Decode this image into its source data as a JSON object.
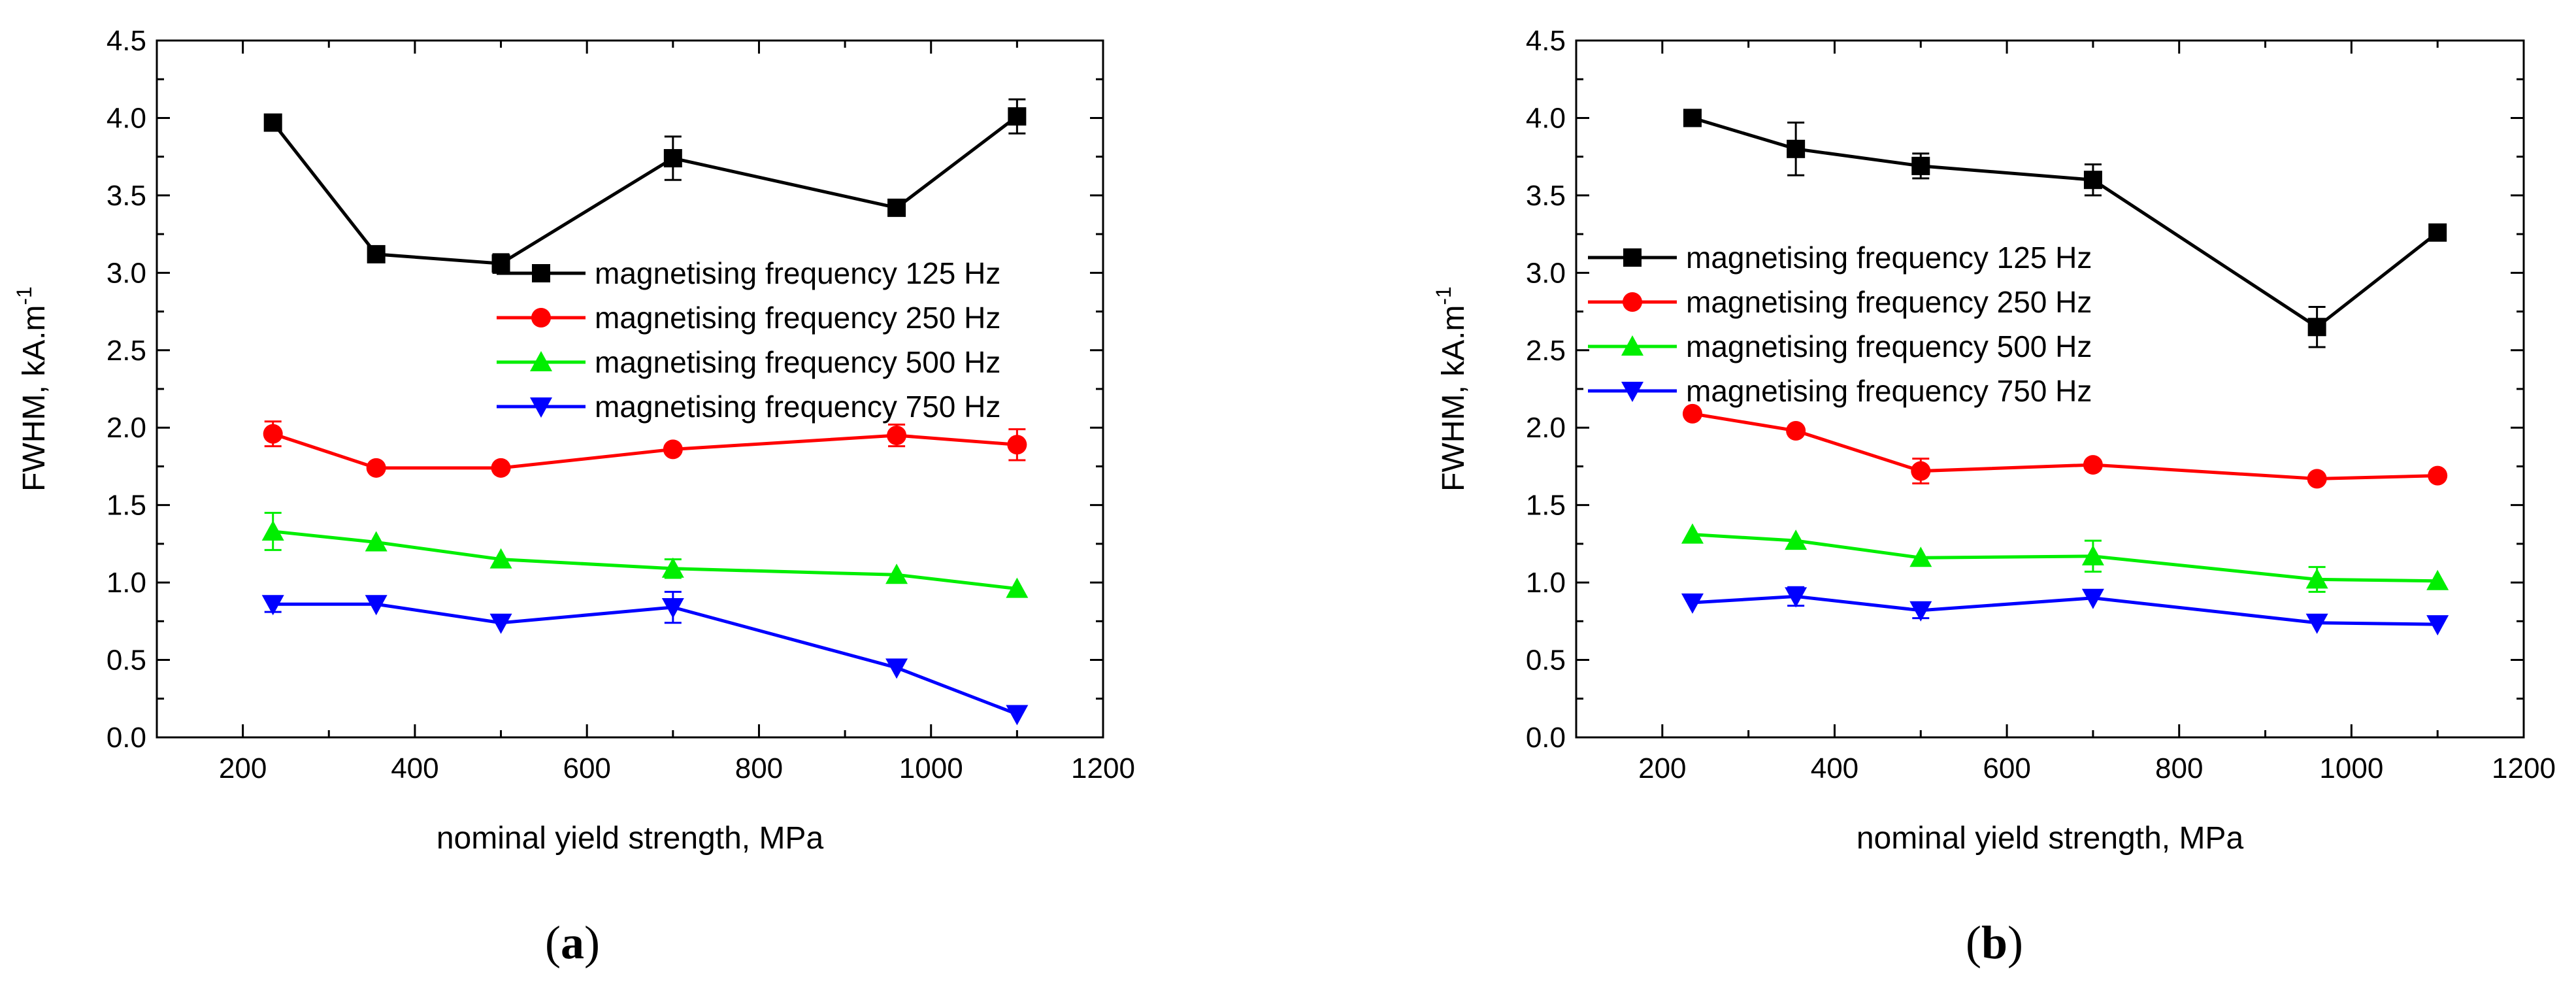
{
  "chart_data": [
    {
      "type": "line",
      "panel_label": "a",
      "xlabel": "nominal yield strength, MPa",
      "ylabel": "FWHM, kA.m",
      "ylabel_superscript": "-1",
      "xlim": [
        100,
        1200
      ],
      "ylim": [
        0,
        4.5
      ],
      "xticks": [
        "200",
        "400",
        "600",
        "800",
        "1000",
        "1200"
      ],
      "yticks": [
        "0.0",
        "0.5",
        "1.0",
        "1.5",
        "2.0",
        "2.5",
        "3.0",
        "3.5",
        "4.0",
        "4.5"
      ],
      "legend_position": "upper-right",
      "x": [
        235,
        355,
        500,
        700,
        960,
        1100
      ],
      "series": [
        {
          "name": "magnetising frequency 125 Hz",
          "color": "#000000",
          "marker": "square",
          "values": [
            3.97,
            3.12,
            3.06,
            3.74,
            3.42,
            4.01
          ],
          "errors": [
            0.0,
            0.0,
            0.06,
            0.14,
            0.0,
            0.11
          ]
        },
        {
          "name": "magnetising frequency 250 Hz",
          "color": "#ff0000",
          "marker": "circle",
          "values": [
            1.96,
            1.74,
            1.74,
            1.86,
            1.95,
            1.89
          ],
          "errors": [
            0.08,
            0.0,
            0.0,
            0.0,
            0.07,
            0.1
          ]
        },
        {
          "name": "magnetising frequency 500 Hz",
          "color": "#00ee00",
          "marker": "triangle-up",
          "values": [
            1.33,
            1.26,
            1.15,
            1.09,
            1.05,
            0.96
          ],
          "errors": [
            0.12,
            0.0,
            0.0,
            0.06,
            0.0,
            0.0
          ]
        },
        {
          "name": "magnetising frequency 750 Hz",
          "color": "#0000ff",
          "marker": "triangle-down",
          "values": [
            0.86,
            0.86,
            0.74,
            0.84,
            0.45,
            0.15
          ],
          "errors": [
            0.05,
            0.0,
            0.0,
            0.1,
            0.0,
            0.0
          ]
        }
      ]
    },
    {
      "type": "line",
      "panel_label": "b",
      "xlabel": "nominal yield strength, MPa",
      "ylabel": "FWHM, kA.m",
      "ylabel_superscript": "-1",
      "xlim": [
        100,
        1200
      ],
      "ylim": [
        0,
        4.5
      ],
      "xticks": [
        "200",
        "400",
        "600",
        "800",
        "1000",
        "1200"
      ],
      "yticks": [
        "0.0",
        "0.5",
        "1.0",
        "1.5",
        "2.0",
        "2.5",
        "3.0",
        "3.5",
        "4.0",
        "4.5"
      ],
      "legend_position": "upper-left",
      "x": [
        235,
        355,
        500,
        700,
        960,
        1100
      ],
      "series": [
        {
          "name": "magnetising frequency 125 Hz",
          "color": "#000000",
          "marker": "square",
          "values": [
            4.0,
            3.8,
            3.69,
            3.6,
            2.65,
            3.26
          ],
          "errors": [
            0.0,
            0.17,
            0.08,
            0.1,
            0.13,
            0.0
          ]
        },
        {
          "name": "magnetising frequency 250 Hz",
          "color": "#ff0000",
          "marker": "circle",
          "values": [
            2.09,
            1.98,
            1.72,
            1.76,
            1.67,
            1.69
          ],
          "errors": [
            0.0,
            0.0,
            0.08,
            0.0,
            0.0,
            0.0
          ]
        },
        {
          "name": "magnetising frequency 500 Hz",
          "color": "#00ee00",
          "marker": "triangle-up",
          "values": [
            1.31,
            1.27,
            1.16,
            1.17,
            1.02,
            1.01
          ],
          "errors": [
            0.0,
            0.0,
            0.0,
            0.1,
            0.08,
            0.0
          ]
        },
        {
          "name": "magnetising frequency 750 Hz",
          "color": "#0000ff",
          "marker": "triangle-down",
          "values": [
            0.87,
            0.91,
            0.82,
            0.9,
            0.74,
            0.73
          ],
          "errors": [
            0.0,
            0.06,
            0.05,
            0.0,
            0.0,
            0.0
          ]
        }
      ]
    }
  ]
}
